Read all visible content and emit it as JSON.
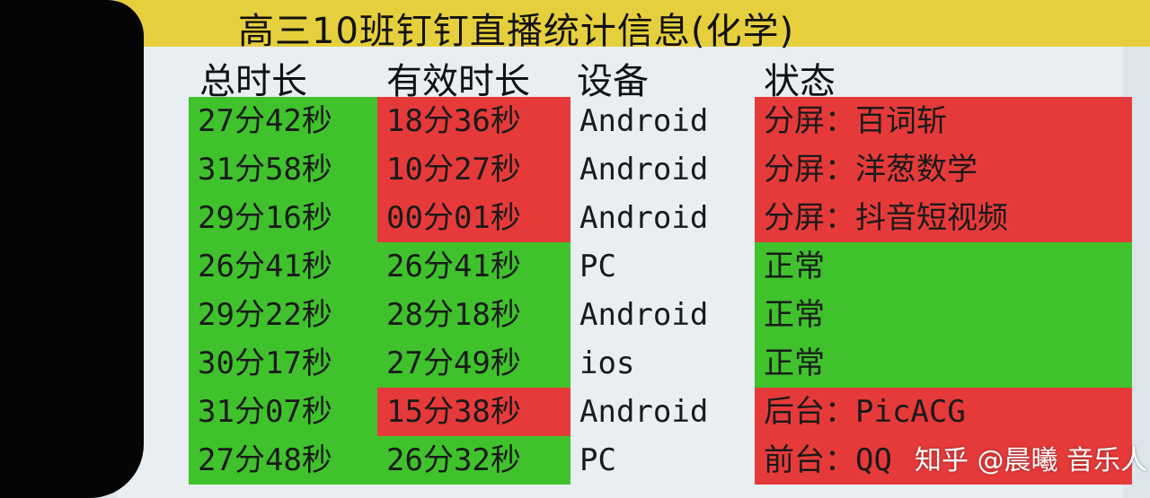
{
  "title": "高三10班钉钉直播统计信息(化学)",
  "colors": {
    "good": "#3fc22c",
    "bad": "#e63a3a",
    "title_bg": "#e6cf3c"
  },
  "headers": {
    "total": "总时长",
    "effective": "有效时长",
    "device": "设备",
    "status": "状态"
  },
  "rows": [
    {
      "total": "27分42秒",
      "effective": "18分36秒",
      "device": "Android",
      "status": "分屏：百词斩",
      "effective_ok": false,
      "status_ok": false
    },
    {
      "total": "31分58秒",
      "effective": "10分27秒",
      "device": "Android",
      "status": "分屏：洋葱数学",
      "effective_ok": false,
      "status_ok": false
    },
    {
      "total": "29分16秒",
      "effective": "00分01秒",
      "device": "Android",
      "status": "分屏：抖音短视频",
      "effective_ok": false,
      "status_ok": false
    },
    {
      "total": "26分41秒",
      "effective": "26分41秒",
      "device": "PC",
      "status": "正常",
      "effective_ok": true,
      "status_ok": true
    },
    {
      "total": "29分22秒",
      "effective": "28分18秒",
      "device": "Android",
      "status": "正常",
      "effective_ok": true,
      "status_ok": true
    },
    {
      "total": "30分17秒",
      "effective": "27分49秒",
      "device": "ios",
      "status": "正常",
      "effective_ok": true,
      "status_ok": true
    },
    {
      "total": "31分07秒",
      "effective": "15分38秒",
      "device": "Android",
      "status": "后台：PicACG",
      "effective_ok": false,
      "status_ok": false
    },
    {
      "total": "27分48秒",
      "effective": "26分32秒",
      "device": "PC",
      "status": "前台：QQ",
      "effective_ok": true,
      "status_ok": false
    }
  ],
  "watermark": "知乎 @晨曦 音乐人"
}
